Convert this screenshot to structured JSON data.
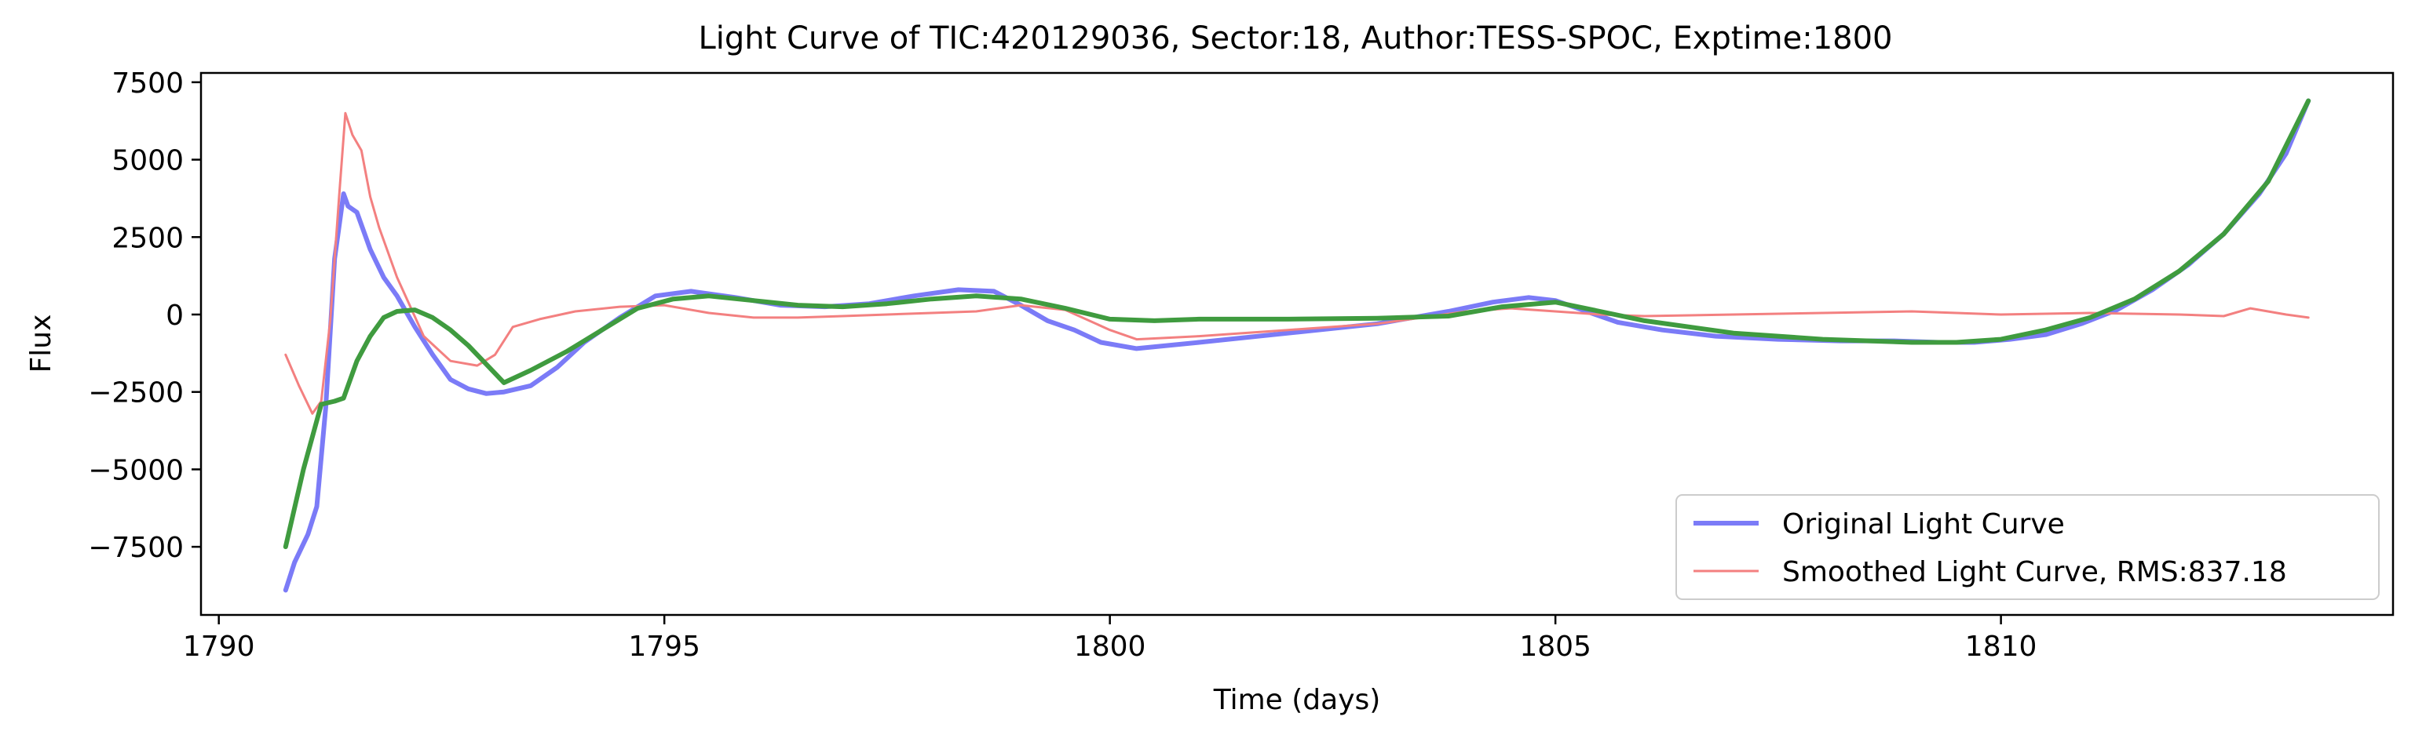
{
  "chart_data": {
    "type": "line",
    "title": "Light Curve of TIC:420129036, Sector:18, Author:TESS-SPOC, Exptime:1800",
    "xlabel": "Time (days)",
    "ylabel": "Flux",
    "xlim": [
      1789.8,
      1814.4
    ],
    "ylim": [
      -9700,
      7800
    ],
    "xticks": [
      1790,
      1795,
      1800,
      1805,
      1810
    ],
    "yticks": [
      -7500,
      -5000,
      -2500,
      0,
      2500,
      5000,
      7500
    ],
    "xtick_labels": [
      "1790",
      "1795",
      "1800",
      "1805",
      "1810"
    ],
    "ytick_labels": [
      "−7500",
      "−5000",
      "−2500",
      "0",
      "2500",
      "5000",
      "7500"
    ],
    "grid": false,
    "legend_position": "lower-right",
    "legend": [
      {
        "label": "Original Light Curve",
        "color": "#7b7bf7"
      },
      {
        "label": "Smoothed Light Curve, RMS:837.18",
        "color": "#f38080"
      }
    ],
    "series": [
      {
        "name": "Original Light Curve",
        "color": "#7b7bf7",
        "x": [
          1790.75,
          1790.85,
          1791.0,
          1791.1,
          1791.2,
          1791.3,
          1791.4,
          1791.45,
          1791.55,
          1791.7,
          1791.85,
          1792.0,
          1792.2,
          1792.4,
          1792.6,
          1792.8,
          1793.0,
          1793.2,
          1793.5,
          1793.8,
          1794.1,
          1794.5,
          1794.9,
          1795.3,
          1795.8,
          1796.3,
          1796.8,
          1797.3,
          1797.8,
          1798.3,
          1798.7,
          1799.0,
          1799.3,
          1799.6,
          1799.9,
          1800.3,
          1801.0,
          1802.0,
          1803.0,
          1803.8,
          1804.3,
          1804.7,
          1805.0,
          1805.3,
          1805.7,
          1806.2,
          1806.8,
          1807.5,
          1808.2,
          1808.8,
          1809.3,
          1809.7,
          1810.1,
          1810.5,
          1810.9,
          1811.3,
          1811.7,
          1812.1,
          1812.5,
          1812.9,
          1813.2,
          1813.45
        ],
        "y": [
          -8900,
          -8000,
          -7100,
          -6200,
          -3000,
          1800,
          3900,
          3500,
          3300,
          2100,
          1200,
          600,
          -400,
          -1300,
          -2100,
          -2400,
          -2550,
          -2500,
          -2300,
          -1700,
          -900,
          -100,
          600,
          750,
          550,
          300,
          250,
          350,
          600,
          800,
          750,
          300,
          -200,
          -500,
          -900,
          -1100,
          -900,
          -600,
          -300,
          100,
          400,
          550,
          450,
          150,
          -250,
          -500,
          -700,
          -800,
          -850,
          -850,
          -900,
          -900,
          -800,
          -650,
          -300,
          150,
          800,
          1600,
          2600,
          3900,
          5200,
          6900
        ]
      },
      {
        "name": "Smoothed Light Curve, RMS:837.18",
        "color": "#f38080",
        "x": [
          1790.75,
          1790.9,
          1791.05,
          1791.15,
          1791.25,
          1791.35,
          1791.42,
          1791.5,
          1791.6,
          1791.7,
          1791.8,
          1792.0,
          1792.3,
          1792.6,
          1792.9,
          1793.1,
          1793.3,
          1793.6,
          1794.0,
          1794.5,
          1795.0,
          1795.5,
          1796.0,
          1796.5,
          1797.0,
          1797.5,
          1798.0,
          1798.5,
          1799.0,
          1799.5,
          1800.0,
          1800.3,
          1801.0,
          1802.0,
          1803.0,
          1804.0,
          1804.5,
          1805.0,
          1805.5,
          1806.0,
          1807.0,
          1808.0,
          1809.0,
          1809.5,
          1810.0,
          1811.0,
          1812.0,
          1812.5,
          1812.8,
          1813.2,
          1813.45
        ],
        "y": [
          -1300,
          -2300,
          -3200,
          -2800,
          -200,
          3800,
          6500,
          5800,
          5300,
          3800,
          2800,
          1200,
          -700,
          -1500,
          -1650,
          -1300,
          -400,
          -150,
          100,
          250,
          300,
          50,
          -100,
          -100,
          -50,
          0,
          50,
          100,
          300,
          150,
          -500,
          -800,
          -700,
          -500,
          -300,
          100,
          200,
          100,
          0,
          -50,
          0,
          50,
          100,
          50,
          0,
          50,
          0,
          -50,
          200,
          0,
          -100
        ]
      },
      {
        "name": "",
        "color": "#3f9b3f",
        "x": [
          1790.75,
          1790.95,
          1791.15,
          1791.3,
          1791.4,
          1791.55,
          1791.7,
          1791.85,
          1792.0,
          1792.2,
          1792.4,
          1792.6,
          1792.8,
          1793.0,
          1793.2,
          1793.5,
          1793.9,
          1794.3,
          1794.7,
          1795.1,
          1795.5,
          1796.0,
          1796.5,
          1797.0,
          1797.5,
          1798.0,
          1798.5,
          1799.0,
          1799.5,
          1800.0,
          1800.5,
          1801.0,
          1802.0,
          1803.0,
          1803.8,
          1804.4,
          1805.0,
          1805.5,
          1806.0,
          1807.0,
          1808.0,
          1809.0,
          1809.5,
          1810.0,
          1810.5,
          1811.0,
          1811.5,
          1812.0,
          1812.5,
          1813.0,
          1813.45
        ],
        "y": [
          -7500,
          -5000,
          -2900,
          -2800,
          -2700,
          -1500,
          -700,
          -100,
          100,
          150,
          -100,
          -500,
          -1000,
          -1600,
          -2200,
          -1800,
          -1200,
          -500,
          200,
          500,
          600,
          450,
          300,
          250,
          350,
          500,
          600,
          500,
          200,
          -150,
          -200,
          -150,
          -150,
          -120,
          -50,
          250,
          400,
          100,
          -200,
          -600,
          -800,
          -900,
          -900,
          -800,
          -500,
          -100,
          500,
          1400,
          2600,
          4300,
          6900
        ]
      }
    ]
  }
}
